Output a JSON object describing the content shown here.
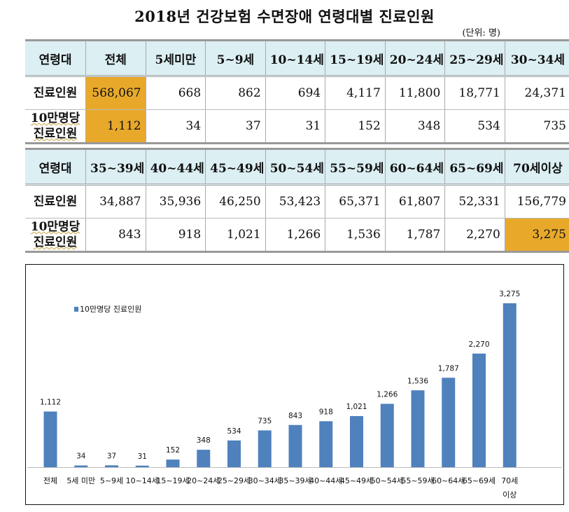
{
  "title": "2018년 건강보험 수면장애 연령대별 진료인원",
  "unit": "(단위: 명)",
  "table1": {
    "header": [
      "연령대",
      "전체",
      "5세미만",
      "5~9세",
      "10~14세",
      "15~19세",
      "20~24세",
      "25~29세",
      "30~34세"
    ],
    "row1_label": "진료인원",
    "row1": [
      "568,067",
      "668",
      "862",
      "694",
      "4,117",
      "11,800",
      "18,771",
      "24,371"
    ],
    "row2_label_a": "10만명당",
    "row2_label_b": "진료인원",
    "row2": [
      "1,112",
      "34",
      "37",
      "31",
      "152",
      "348",
      "534",
      "735"
    ]
  },
  "table2": {
    "header": [
      "연령대",
      "35~39세",
      "40~44세",
      "45~49세",
      "50~54세",
      "55~59세",
      "60~64세",
      "65~69세",
      "70세이상"
    ],
    "row1_label": "진료인원",
    "row1": [
      "34,887",
      "35,936",
      "46,250",
      "53,423",
      "65,371",
      "61,807",
      "52,331",
      "156,779"
    ],
    "row2_label_a": "10만명당",
    "row2_label_b": "진료인원",
    "row2": [
      "843",
      "918",
      "1,021",
      "1,266",
      "1,536",
      "1,787",
      "2,270",
      "3,275"
    ]
  },
  "highlight_color": "#e8a92b",
  "chart_data": {
    "type": "bar",
    "legend": "10만명당 진료인원",
    "legend_position": "top-left",
    "bar_color": "#4f81bd",
    "categories": [
      "전체",
      "5세 미만",
      "5~9세",
      "10~14세",
      "15~19세",
      "20~24세",
      "25~29세",
      "30~34세",
      "35~39세",
      "40~44세",
      "45~49세",
      "50~54세",
      "55~59세",
      "60~64세",
      "65~69세",
      "70세 이상"
    ],
    "values": [
      1112,
      34,
      37,
      31,
      152,
      348,
      534,
      735,
      843,
      918,
      1021,
      1266,
      1536,
      1787,
      2270,
      3275
    ],
    "labels": [
      "1,112",
      "34",
      "37",
      "31",
      "152",
      "348",
      "534",
      "735",
      "843",
      "918",
      "1,021",
      "1,266",
      "1,536",
      "1,787",
      "2,270",
      "3,275"
    ],
    "ylim": [
      0,
      3275
    ],
    "grid": false
  }
}
